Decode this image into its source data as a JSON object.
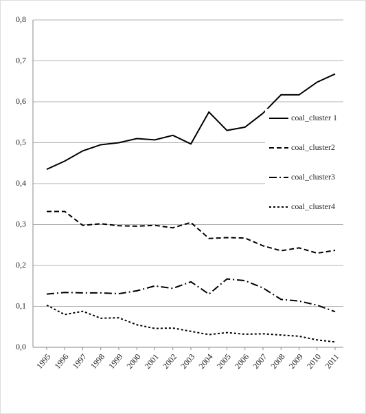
{
  "chart_data": {
    "type": "line",
    "categories": [
      "1995",
      "1996",
      "1997",
      "1998",
      "1999",
      "2000",
      "2001",
      "2002",
      "2003",
      "2004",
      "2005",
      "2006",
      "2007",
      "2008",
      "2009",
      "2010",
      "2011"
    ],
    "series": [
      {
        "name": "coal_cluster 1",
        "color": "#000000",
        "style": "solid",
        "values": [
          0.435,
          0.455,
          0.48,
          0.495,
          0.5,
          0.51,
          0.507,
          0.518,
          0.497,
          0.575,
          0.53,
          0.538,
          0.572,
          0.617,
          0.617,
          0.648,
          0.668
        ]
      },
      {
        "name": "coal_cluster2",
        "color": "#000000",
        "style": "dashed",
        "values": [
          0.332,
          0.332,
          0.298,
          0.302,
          0.297,
          0.296,
          0.298,
          0.292,
          0.305,
          0.266,
          0.268,
          0.267,
          0.248,
          0.236,
          0.243,
          0.23,
          0.237
        ]
      },
      {
        "name": "coal_cluster3",
        "color": "#000000",
        "style": "dash-dot",
        "values": [
          0.13,
          0.134,
          0.133,
          0.133,
          0.131,
          0.138,
          0.15,
          0.144,
          0.16,
          0.13,
          0.167,
          0.163,
          0.145,
          0.117,
          0.113,
          0.103,
          0.087
        ]
      },
      {
        "name": "coal_cluster4",
        "color": "#000000",
        "style": "dotted",
        "values": [
          0.103,
          0.08,
          0.088,
          0.071,
          0.072,
          0.055,
          0.046,
          0.047,
          0.039,
          0.031,
          0.036,
          0.032,
          0.033,
          0.03,
          0.027,
          0.018,
          0.013
        ]
      }
    ],
    "ylim": [
      0,
      0.8
    ],
    "yticks": [
      {
        "value": 0,
        "label": "0,0"
      },
      {
        "value": 0.1,
        "label": "0,1"
      },
      {
        "value": 0.2,
        "label": "0,2"
      },
      {
        "value": 0.3,
        "label": "0,3"
      },
      {
        "value": 0.4,
        "label": "0,4"
      },
      {
        "value": 0.5,
        "label": "0,5"
      },
      {
        "value": 0.6,
        "label": "0,6"
      },
      {
        "value": 0.7,
        "label": "0,7"
      },
      {
        "value": 0.8,
        "label": "0,8"
      }
    ],
    "grid": true,
    "legend": "right"
  }
}
